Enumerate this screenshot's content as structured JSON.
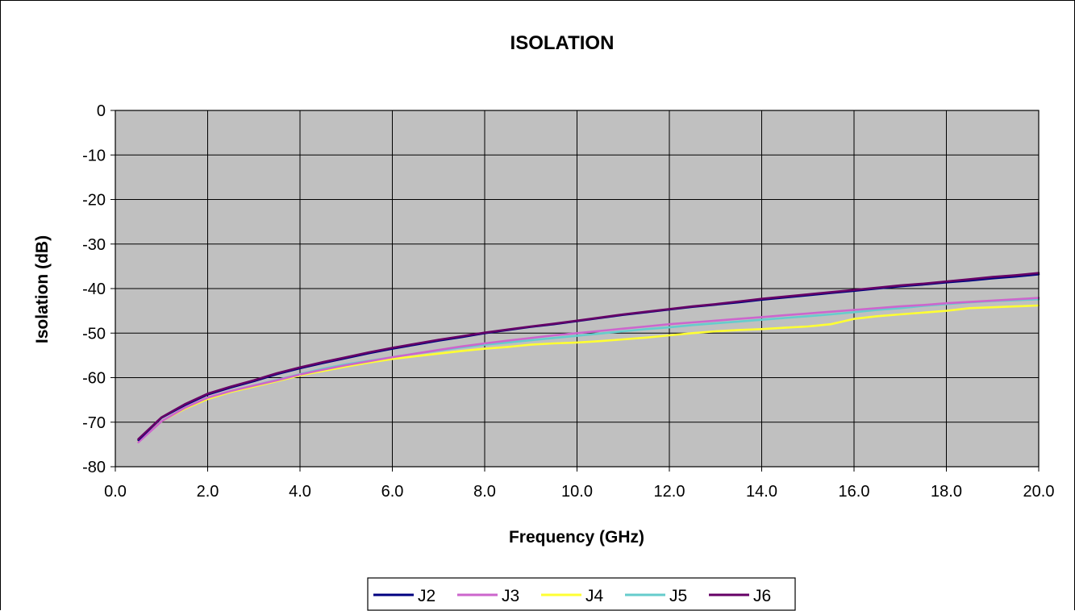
{
  "chart_data": {
    "type": "line",
    "title": "ISOLATION",
    "xlabel": "Frequency (GHz)",
    "ylabel": "Isolation (dB)",
    "xlim": [
      0,
      20
    ],
    "ylim": [
      -80,
      0
    ],
    "x_ticks": [
      "0.0",
      "2.0",
      "4.0",
      "6.0",
      "8.0",
      "10.0",
      "12.0",
      "14.0",
      "16.0",
      "18.0",
      "20.0"
    ],
    "y_ticks": [
      "0",
      "-10",
      "-20",
      "-30",
      "-40",
      "-50",
      "-60",
      "-70",
      "-80"
    ],
    "grid": true,
    "plot_background": "#c0c0c0",
    "legend_position": "bottom",
    "x": [
      0.5,
      1.0,
      1.5,
      2.0,
      2.5,
      3.0,
      3.5,
      4.0,
      4.5,
      5.0,
      5.5,
      6.0,
      6.5,
      7.0,
      7.5,
      8.0,
      8.5,
      9.0,
      9.5,
      10.0,
      10.5,
      11.0,
      11.5,
      12.0,
      12.5,
      13.0,
      13.5,
      14.0,
      14.5,
      15.0,
      15.5,
      16.0,
      16.5,
      17.0,
      17.5,
      18.0,
      18.5,
      19.0,
      19.5,
      20.0
    ],
    "series": [
      {
        "name": "J2",
        "color": "#000080",
        "values": [
          -74.0,
          -69.0,
          -66.2,
          -63.8,
          -62.2,
          -60.8,
          -59.2,
          -57.9,
          -56.7,
          -55.6,
          -54.5,
          -53.5,
          -52.6,
          -51.7,
          -50.9,
          -50.0,
          -49.3,
          -48.6,
          -48.0,
          -47.3,
          -46.6,
          -45.9,
          -45.3,
          -44.7,
          -44.1,
          -43.6,
          -43.1,
          -42.5,
          -42.0,
          -41.5,
          -41.0,
          -40.5,
          -40.0,
          -39.5,
          -39.1,
          -38.6,
          -38.2,
          -37.7,
          -37.3,
          -36.8
        ]
      },
      {
        "name": "J3",
        "color": "#cc66cc",
        "values": [
          -74.5,
          -69.8,
          -66.8,
          -64.5,
          -63.0,
          -61.8,
          -60.6,
          -59.3,
          -58.2,
          -57.2,
          -56.3,
          -55.4,
          -54.6,
          -53.8,
          -53.0,
          -52.3,
          -51.7,
          -51.1,
          -50.5,
          -50.0,
          -49.5,
          -49.0,
          -48.5,
          -48.0,
          -47.6,
          -47.2,
          -46.8,
          -46.4,
          -46.0,
          -45.6,
          -45.2,
          -44.8,
          -44.4,
          -44.0,
          -43.7,
          -43.3,
          -43.0,
          -42.7,
          -42.4,
          -42.1
        ]
      },
      {
        "name": "J4",
        "color": "#ffff33",
        "values": [
          -74.2,
          -69.8,
          -67.0,
          -64.8,
          -63.2,
          -62.0,
          -60.8,
          -59.5,
          -58.5,
          -57.5,
          -56.6,
          -55.8,
          -55.2,
          -54.6,
          -54.0,
          -53.5,
          -53.1,
          -52.6,
          -52.3,
          -52.1,
          -51.8,
          -51.4,
          -51.0,
          -50.5,
          -50.0,
          -49.6,
          -49.3,
          -49.1,
          -48.8,
          -48.5,
          -48.0,
          -46.8,
          -46.2,
          -45.8,
          -45.4,
          -45.0,
          -44.4,
          -44.2,
          -44.0,
          -43.8
        ]
      },
      {
        "name": "J5",
        "color": "#66cccc",
        "values": [
          -74.0,
          -69.8,
          -66.9,
          -64.6,
          -63.0,
          -61.8,
          -60.5,
          -59.2,
          -58.0,
          -57.0,
          -56.2,
          -55.4,
          -54.6,
          -53.9,
          -53.2,
          -52.6,
          -52.1,
          -51.6,
          -51.1,
          -50.6,
          -50.1,
          -49.6,
          -49.1,
          -48.7,
          -48.2,
          -47.8,
          -47.4,
          -47.0,
          -46.6,
          -46.2,
          -45.8,
          -45.3,
          -44.8,
          -44.4,
          -43.9,
          -43.5,
          -43.1,
          -42.8,
          -42.6,
          -42.4
        ]
      },
      {
        "name": "J6",
        "color": "#660066",
        "values": [
          -73.8,
          -68.9,
          -66.0,
          -63.6,
          -62.0,
          -60.6,
          -59.0,
          -57.7,
          -56.5,
          -55.4,
          -54.3,
          -53.3,
          -52.4,
          -51.5,
          -50.7,
          -49.9,
          -49.2,
          -48.5,
          -47.9,
          -47.2,
          -46.5,
          -45.8,
          -45.2,
          -44.6,
          -44.0,
          -43.5,
          -42.9,
          -42.3,
          -41.8,
          -41.3,
          -40.8,
          -40.3,
          -39.8,
          -39.3,
          -38.9,
          -38.4,
          -37.9,
          -37.4,
          -37.0,
          -36.5
        ]
      }
    ]
  }
}
